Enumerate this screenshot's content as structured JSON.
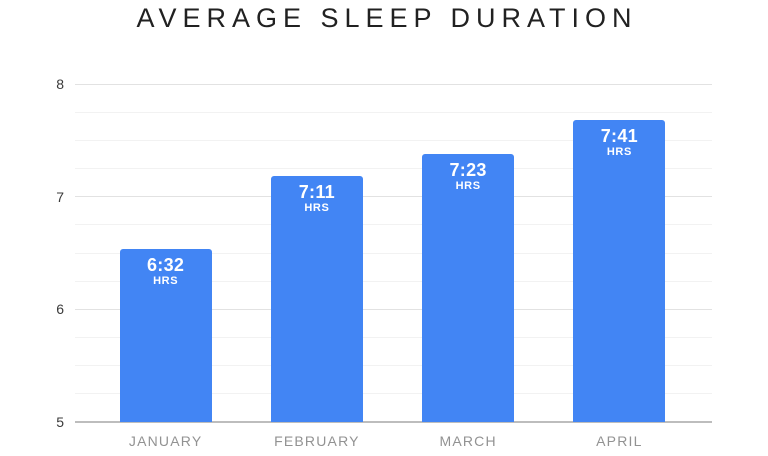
{
  "title": "AVERAGE SLEEP DURATION",
  "colors": {
    "bar": "#4285f4",
    "bar_label_text": "#ffffff",
    "title_text": "#212121",
    "y_axis_text": "#3a3a3a",
    "month_text": "#929292",
    "grid_minor": "#f2f2f2",
    "grid_major": "#e2e2e2",
    "grid_baseline": "#bdbdbd"
  },
  "chart_data": {
    "type": "bar",
    "title": "AVERAGE SLEEP DURATION",
    "categories": [
      "JANUARY",
      "FEBRUARY",
      "MARCH",
      "APRIL"
    ],
    "values": [
      6.533,
      7.183,
      7.383,
      7.683
    ],
    "bar_labels": [
      {
        "time": "6:32",
        "unit": "HRS"
      },
      {
        "time": "7:11",
        "unit": "HRS"
      },
      {
        "time": "7:23",
        "unit": "HRS"
      },
      {
        "time": "7:41",
        "unit": "HRS"
      }
    ],
    "xlabel": "",
    "ylabel": "",
    "ylim": [
      5,
      8
    ],
    "yticks": [
      8,
      7,
      6,
      5
    ],
    "minor_gridline_step": 0.25,
    "grid": true,
    "legend": false
  }
}
